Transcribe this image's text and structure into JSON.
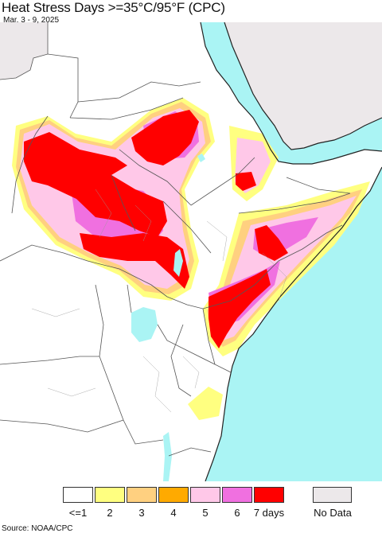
{
  "header": {
    "title": "Heat Stress Days >=35°C/95°F (CPC)",
    "date_range": "Mar. 3 - 9, 2025"
  },
  "map": {
    "region": "East Africa",
    "colors": {
      "ocean": "#aaf4f4",
      "land": "#ffffff",
      "outside_region": "#ece8ea",
      "borders": "#555555",
      "coastline": "#222222"
    }
  },
  "legend": {
    "items": [
      {
        "label": "<=1",
        "color": "#ffffff"
      },
      {
        "label": "2",
        "color": "#ffff80"
      },
      {
        "label": "3",
        "color": "#ffd080"
      },
      {
        "label": "4",
        "color": "#ffaa00"
      },
      {
        "label": "5",
        "color": "#ffc8e8"
      },
      {
        "label": "6",
        "color": "#f070e0"
      },
      {
        "label": "7 days",
        "color": "#ff0000"
      }
    ],
    "no_data": {
      "label": "No Data",
      "color": "#ece8ea"
    }
  },
  "footer": {
    "source": "Source: NOAA/CPC"
  }
}
